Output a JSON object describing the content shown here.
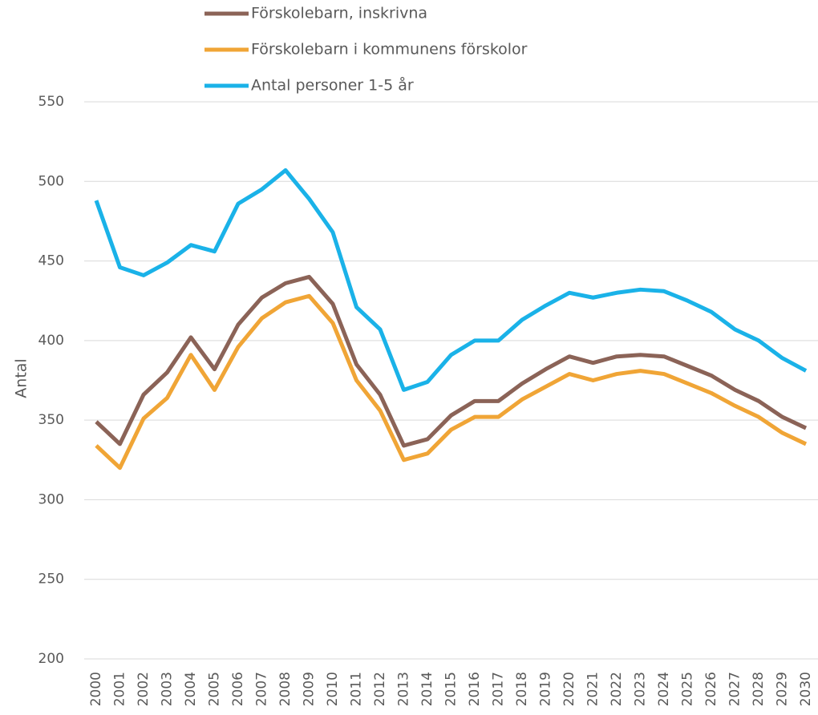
{
  "chart_data": {
    "type": "line",
    "y_label": "Antal",
    "categories": [
      "2000",
      "2001",
      "2002",
      "2003",
      "2004",
      "2005",
      "2006",
      "2007",
      "2008",
      "2009",
      "2010",
      "2011",
      "2012",
      "2013",
      "2014",
      "2015",
      "2016",
      "2017",
      "2018",
      "2019",
      "2020",
      "2021",
      "2022",
      "2023",
      "2024",
      "2025",
      "2026",
      "2027",
      "2028",
      "2029",
      "2030"
    ],
    "series": [
      {
        "name": "Förskolebarn, inskrivna",
        "color": "#8b6357",
        "values": [
          349,
          335,
          366,
          380,
          402,
          382,
          410,
          427,
          436,
          440,
          423,
          385,
          366,
          334,
          338,
          353,
          362,
          362,
          373,
          382,
          390,
          386,
          390,
          391,
          390,
          384,
          378,
          369,
          362,
          352,
          345
        ]
      },
      {
        "name": "Förskolebarn i kommunens förskolor",
        "color": "#f0a536",
        "values": [
          334,
          320,
          351,
          364,
          391,
          369,
          396,
          414,
          424,
          428,
          411,
          375,
          356,
          325,
          329,
          344,
          352,
          352,
          363,
          371,
          379,
          375,
          379,
          381,
          379,
          373,
          367,
          359,
          352,
          342,
          335
        ]
      },
      {
        "name": "Antal personer 1-5 år",
        "color": "#1ab2e8",
        "values": [
          488,
          446,
          441,
          449,
          460,
          456,
          486,
          495,
          507,
          489,
          468,
          421,
          407,
          369,
          374,
          391,
          400,
          400,
          413,
          422,
          430,
          427,
          430,
          432,
          431,
          425,
          418,
          407,
          400,
          389,
          381
        ]
      }
    ],
    "ylim": [
      200,
      550
    ],
    "yticks": [
      200,
      250,
      300,
      350,
      400,
      450,
      500,
      550
    ],
    "grid": true,
    "legend": "top"
  }
}
